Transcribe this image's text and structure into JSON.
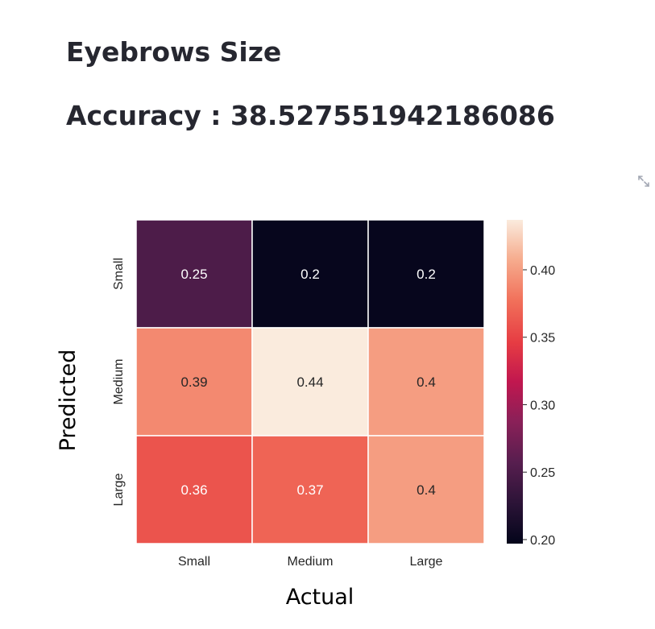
{
  "page": {
    "title": "Eyebrows Size",
    "accuracy": "Accuracy : 38.527551942186086"
  },
  "icons": {
    "expand": "expand-arrows-icon"
  },
  "chart_data": {
    "type": "heatmap",
    "title": "",
    "xlabel": "Actual",
    "ylabel": "Predicted",
    "x_categories": [
      "Small",
      "Medium",
      "Large"
    ],
    "y_categories": [
      "Small",
      "Medium",
      "Large"
    ],
    "values": [
      [
        0.25,
        0.2,
        0.2
      ],
      [
        0.39,
        0.44,
        0.4
      ],
      [
        0.36,
        0.37,
        0.4
      ]
    ],
    "cell_labels": [
      [
        "0.25",
        "0.2",
        "0.2"
      ],
      [
        "0.39",
        "0.44",
        "0.4"
      ],
      [
        "0.36",
        "0.37",
        "0.4"
      ]
    ],
    "colorbar": {
      "range": [
        0.197,
        0.437
      ],
      "ticks": [
        0.2,
        0.25,
        0.3,
        0.35,
        0.4
      ],
      "tick_labels": [
        "0.20",
        "0.25",
        "0.30",
        "0.35",
        "0.40"
      ],
      "colormap": "rocket"
    }
  }
}
